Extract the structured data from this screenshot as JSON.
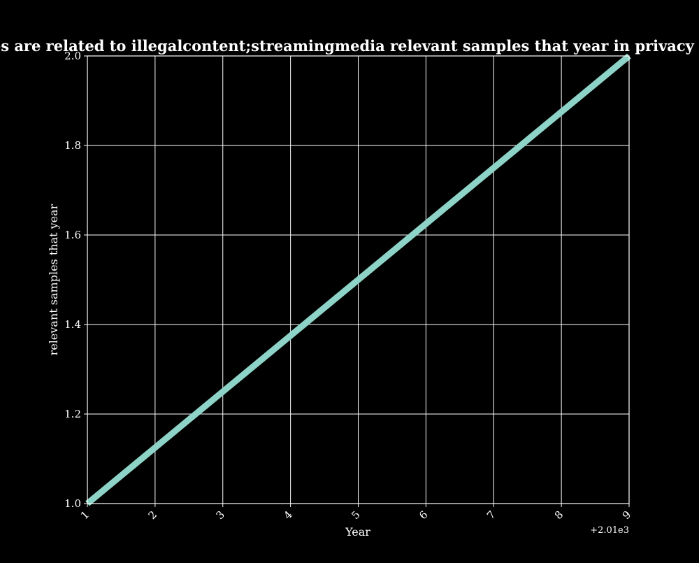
{
  "chart_data": {
    "type": "line",
    "title": "Ten categories are related to illegalcontent;streamingmedia relevant samples that year in privacy policies by year",
    "xlabel": "Year",
    "ylabel": "relevant samples that year",
    "x_offset_label": "+2.01e3",
    "xlim": [
      1,
      9
    ],
    "ylim": [
      1.0,
      2.0
    ],
    "x_ticks": [
      "1",
      "2",
      "3",
      "4",
      "5",
      "6",
      "7",
      "8",
      "9"
    ],
    "y_ticks": [
      "1.0",
      "1.2",
      "1.4",
      "1.6",
      "1.8",
      "2.0"
    ],
    "grid": true,
    "series": [
      {
        "x": [
          1,
          9
        ],
        "y": [
          1.0,
          2.0
        ],
        "color": "#8dd3c7"
      }
    ],
    "colors": {
      "background": "#000000",
      "axes": "#ffffff",
      "grid": "#ffffff"
    }
  }
}
